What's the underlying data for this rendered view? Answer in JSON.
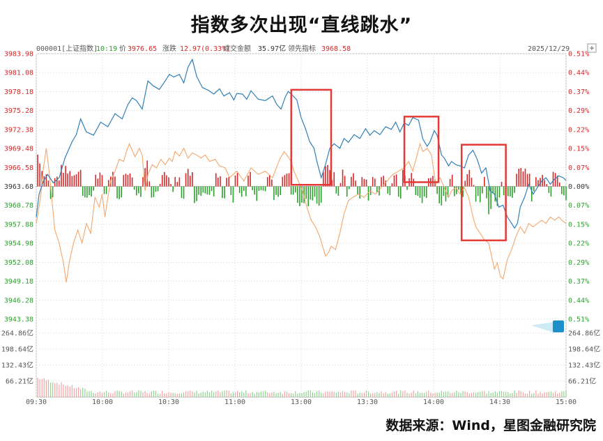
{
  "title": "指数多次出现“直线跳水”",
  "source": "数据来源：Wind，星图金融研究院",
  "header": {
    "code": "000001[上证指数]",
    "time": "10:19",
    "price_label": "价",
    "price": "3976.65",
    "change_label": "涨跌",
    "change": "12.97(0.33%)",
    "amount_label": "成交金额",
    "amount": "35.97亿",
    "lead_label": "领先指标",
    "lead": "3968.58",
    "date": "2025/12/29"
  },
  "colors": {
    "index_line": "#2f7fb5",
    "lead_line": "#f4a66b",
    "up": "#d62728",
    "down": "#2ca02c",
    "highlight_box": "#e53935",
    "grid": "#e6e6e6"
  },
  "chart_data": {
    "type": "line",
    "base": 3963.68,
    "ylim": [
      3943.38,
      3983.98
    ],
    "left_ticks": [
      "3983.98",
      "3981.08",
      "3978.18",
      "3975.28",
      "3972.38",
      "3969.48",
      "3966.58",
      "3963.68",
      "3960.78",
      "3957.88",
      "3954.98",
      "3952.08",
      "3949.18",
      "3946.28",
      "3943.38"
    ],
    "right_ticks": [
      "0.51%",
      "0.44%",
      "0.37%",
      "0.29%",
      "0.22%",
      "0.15%",
      "0.07%",
      "0.00%",
      "0.07%",
      "0.15%",
      "0.22%",
      "0.29%",
      "0.37%",
      "0.44%",
      "0.51%"
    ],
    "time_labels": [
      "09:30",
      "10:00",
      "10:30",
      "11:00",
      "13:00",
      "13:30",
      "14:00",
      "14:30",
      "15:00"
    ],
    "volume_ticks": [
      "264.86亿",
      "198.64亿",
      "132.43亿",
      "66.21亿"
    ],
    "volume_max": 264.86,
    "series": [
      {
        "key": "index",
        "points": [
          [
            0,
            3959.0
          ],
          [
            2,
            3962.5
          ],
          [
            5,
            3964.5
          ],
          [
            8,
            3965.5
          ],
          [
            12,
            3964.2
          ],
          [
            16,
            3965.0
          ],
          [
            20,
            3968.0
          ],
          [
            25,
            3970.5
          ],
          [
            28,
            3971.6
          ],
          [
            31,
            3974.0
          ],
          [
            35,
            3972.0
          ],
          [
            40,
            3971.5
          ],
          [
            45,
            3973.5
          ],
          [
            50,
            3972.8
          ],
          [
            55,
            3974.8
          ],
          [
            60,
            3974.0
          ],
          [
            64,
            3976.2
          ],
          [
            67,
            3977.2
          ],
          [
            70,
            3976.8
          ],
          [
            74,
            3975.5
          ],
          [
            78,
            3979.8
          ],
          [
            82,
            3979.0
          ],
          [
            86,
            3978.5
          ],
          [
            90,
            3979.8
          ],
          [
            93,
            3980.8
          ],
          [
            96,
            3980.4
          ],
          [
            100,
            3980.8
          ],
          [
            103,
            3979.5
          ],
          [
            106,
            3981.9
          ],
          [
            109,
            3983.1
          ],
          [
            112,
            3980.5
          ],
          [
            116,
            3978.8
          ],
          [
            120,
            3978.4
          ],
          [
            124,
            3977.8
          ],
          [
            128,
            3978.6
          ],
          [
            131,
            3977.5
          ],
          [
            135,
            3978.0
          ],
          [
            138,
            3976.9
          ],
          [
            140,
            3977.9
          ],
          [
            144,
            3977.8
          ],
          [
            147,
            3977.0
          ],
          [
            150,
            3978.3
          ],
          [
            155,
            3977.0
          ],
          [
            160,
            3976.8
          ],
          [
            165,
            3977.5
          ],
          [
            168,
            3976.2
          ],
          [
            171,
            3975.5
          ],
          [
            174,
            3977.4
          ],
          [
            176,
            3978.2
          ],
          [
            179,
            3977.6
          ],
          [
            182,
            3976.9
          ],
          [
            185,
            3974.2
          ],
          [
            188,
            3972.5
          ],
          [
            191,
            3970.5
          ],
          [
            194,
            3969.5
          ],
          [
            196,
            3967.5
          ],
          [
            199,
            3965.0
          ],
          [
            202,
            3967.0
          ],
          [
            205,
            3969.5
          ],
          [
            208,
            3970.2
          ],
          [
            212,
            3969.5
          ],
          [
            215,
            3971.0
          ],
          [
            218,
            3970.4
          ],
          [
            222,
            3971.6
          ],
          [
            226,
            3971.0
          ],
          [
            230,
            3972.5
          ],
          [
            233,
            3971.5
          ],
          [
            236,
            3972.2
          ],
          [
            240,
            3971.6
          ],
          [
            244,
            3972.8
          ],
          [
            248,
            3972.4
          ],
          [
            251,
            3973.5
          ],
          [
            254,
            3972.0
          ],
          [
            257,
            3973.4
          ],
          [
            260,
            3973.0
          ],
          [
            263,
            3974.2
          ],
          [
            267,
            3973.8
          ],
          [
            270,
            3970.9
          ],
          [
            273,
            3969.8
          ],
          [
            275,
            3970.5
          ],
          [
            278,
            3972.2
          ],
          [
            280,
            3971.5
          ],
          [
            283,
            3968.5
          ],
          [
            285,
            3968.0
          ],
          [
            288,
            3966.8
          ],
          [
            290,
            3967.5
          ],
          [
            293,
            3967.0
          ],
          [
            296,
            3966.8
          ],
          [
            299,
            3966.5
          ],
          [
            302,
            3968.5
          ],
          [
            305,
            3969.2
          ],
          [
            308,
            3967.8
          ],
          [
            311,
            3965.7
          ],
          [
            314,
            3966.5
          ],
          [
            317,
            3963.0
          ],
          [
            320,
            3962.5
          ],
          [
            323,
            3960.5
          ],
          [
            326,
            3960.8
          ],
          [
            329,
            3959.0
          ],
          [
            332,
            3958.0
          ],
          [
            334,
            3957.3
          ],
          [
            336,
            3958.0
          ],
          [
            338,
            3960.5
          ],
          [
            341,
            3962.0
          ],
          [
            344,
            3964.0
          ],
          [
            347,
            3962.5
          ],
          [
            350,
            3963.5
          ],
          [
            353,
            3964.5
          ],
          [
            356,
            3965.0
          ],
          [
            359,
            3964.0
          ],
          [
            362,
            3964.8
          ],
          [
            365,
            3965.3
          ],
          [
            368,
            3965.0
          ],
          [
            370,
            3964.6
          ]
        ]
      },
      {
        "key": "lead",
        "points": [
          [
            0,
            3958.0
          ],
          [
            3,
            3962.0
          ],
          [
            5,
            3966.5
          ],
          [
            7,
            3969.5
          ],
          [
            9,
            3966.0
          ],
          [
            11,
            3961.5
          ],
          [
            13,
            3957.0
          ],
          [
            16,
            3955.0
          ],
          [
            19,
            3952.0
          ],
          [
            21,
            3949.0
          ],
          [
            23,
            3952.0
          ],
          [
            26,
            3955.0
          ],
          [
            29,
            3957.0
          ],
          [
            32,
            3955.0
          ],
          [
            35,
            3958.0
          ],
          [
            38,
            3956.5
          ],
          [
            41,
            3962.0
          ],
          [
            44,
            3960.5
          ],
          [
            46,
            3962.5
          ],
          [
            48,
            3959.0
          ],
          [
            50,
            3962.0
          ],
          [
            52,
            3964.5
          ],
          [
            55,
            3966.0
          ],
          [
            58,
            3967.8
          ],
          [
            61,
            3967.5
          ],
          [
            63,
            3969.0
          ],
          [
            65,
            3970.2
          ],
          [
            67,
            3969.2
          ],
          [
            69,
            3968.2
          ],
          [
            72,
            3969.5
          ],
          [
            74,
            3968.5
          ],
          [
            76,
            3963.0
          ],
          [
            78,
            3965.5
          ],
          [
            81,
            3967.0
          ],
          [
            84,
            3966.5
          ],
          [
            87,
            3967.8
          ],
          [
            90,
            3967.0
          ],
          [
            93,
            3968.0
          ],
          [
            95,
            3967.5
          ],
          [
            97,
            3969.0
          ],
          [
            100,
            3968.3
          ],
          [
            103,
            3969.5
          ],
          [
            106,
            3968.0
          ],
          [
            109,
            3968.8
          ],
          [
            112,
            3968.5
          ],
          [
            115,
            3968.0
          ],
          [
            118,
            3968.5
          ],
          [
            121,
            3967.5
          ],
          [
            125,
            3967.8
          ],
          [
            128,
            3966.8
          ],
          [
            132,
            3966.5
          ],
          [
            135,
            3965.0
          ],
          [
            140,
            3966.0
          ],
          [
            145,
            3964.5
          ],
          [
            150,
            3966.5
          ],
          [
            155,
            3965.5
          ],
          [
            160,
            3966.0
          ],
          [
            165,
            3965.0
          ],
          [
            170,
            3967.8
          ],
          [
            173,
            3969.0
          ],
          [
            175,
            3968.5
          ],
          [
            178,
            3967.5
          ],
          [
            180,
            3966.0
          ],
          [
            183,
            3964.5
          ],
          [
            186,
            3963.0
          ],
          [
            189,
            3960.5
          ],
          [
            192,
            3958.5
          ],
          [
            195,
            3957.5
          ],
          [
            198,
            3956.0
          ],
          [
            200,
            3954.5
          ],
          [
            202,
            3953.0
          ],
          [
            204,
            3953.5
          ],
          [
            206,
            3954.5
          ],
          [
            209,
            3954.0
          ],
          [
            212,
            3956.5
          ],
          [
            215,
            3959.5
          ],
          [
            218,
            3961.5
          ],
          [
            221,
            3962.0
          ],
          [
            225,
            3962.5
          ],
          [
            229,
            3962.0
          ],
          [
            233,
            3963.0
          ],
          [
            237,
            3962.5
          ],
          [
            241,
            3963.5
          ],
          [
            245,
            3964.5
          ],
          [
            249,
            3965.5
          ],
          [
            253,
            3966.0
          ],
          [
            257,
            3966.5
          ],
          [
            260,
            3967.5
          ],
          [
            263,
            3966.0
          ],
          [
            266,
            3968.5
          ],
          [
            268,
            3970.2
          ],
          [
            270,
            3969.0
          ],
          [
            273,
            3969.5
          ],
          [
            276,
            3968.5
          ],
          [
            279,
            3964.0
          ],
          [
            282,
            3965.0
          ],
          [
            285,
            3963.5
          ],
          [
            288,
            3962.0
          ],
          [
            290,
            3963.0
          ],
          [
            293,
            3963.5
          ],
          [
            296,
            3962.5
          ],
          [
            299,
            3963.5
          ],
          [
            302,
            3962.0
          ],
          [
            305,
            3959.0
          ],
          [
            307,
            3957.5
          ],
          [
            310,
            3956.5
          ],
          [
            313,
            3955.5
          ],
          [
            316,
            3955.0
          ],
          [
            318,
            3953.0
          ],
          [
            320,
            3951.0
          ],
          [
            322,
            3952.0
          ],
          [
            324,
            3950.0
          ],
          [
            326,
            3949.5
          ],
          [
            329,
            3952.5
          ],
          [
            332,
            3954.0
          ],
          [
            335,
            3956.0
          ],
          [
            338,
            3957.5
          ],
          [
            341,
            3956.5
          ],
          [
            344,
            3958.0
          ],
          [
            347,
            3957.5
          ],
          [
            350,
            3958.0
          ],
          [
            353,
            3958.5
          ],
          [
            356,
            3958.0
          ],
          [
            359,
            3959.0
          ],
          [
            362,
            3958.5
          ],
          [
            365,
            3959.0
          ],
          [
            367,
            3958.5
          ],
          [
            370,
            3958.0
          ]
        ]
      }
    ],
    "highlight_windows": [
      {
        "from_min": 181,
        "to_min": 204,
        "from_price": 3977.6,
        "to_price": 3965.2
      },
      {
        "from_min": 260,
        "to_min": 279,
        "from_price": 3973.5,
        "to_price": 3965.6
      },
      {
        "from_min": 300,
        "to_min": 326,
        "from_price": 3969.2,
        "to_price": 3956.7
      }
    ]
  }
}
